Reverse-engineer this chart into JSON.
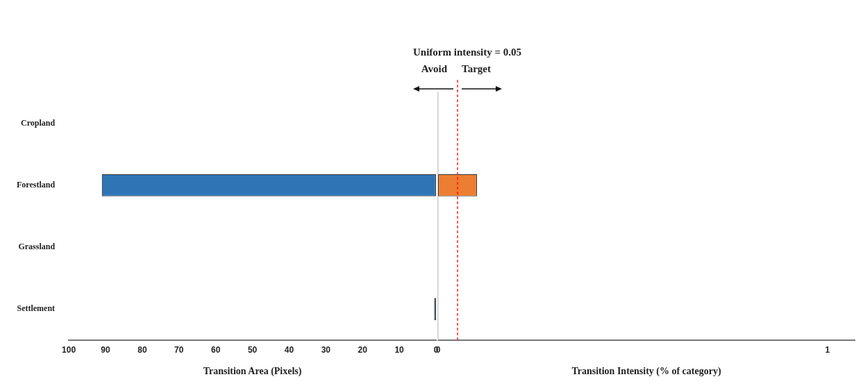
{
  "chart_data": [
    {
      "type": "bar",
      "orientation": "horizontal",
      "categories": [
        "Cropland",
        "Forestland",
        "Grassland",
        "Settlement"
      ],
      "series": [
        {
          "color": "#2e75b6",
          "values": [
            0,
            91,
            0,
            0.5
          ]
        }
      ],
      "xlim": [
        100,
        0
      ],
      "xticks": [
        100,
        90,
        80,
        70,
        60,
        50,
        40,
        30,
        20,
        10,
        0
      ],
      "xlabel": "Transition Area (Pixels)"
    },
    {
      "type": "bar",
      "orientation": "horizontal",
      "categories": [
        null,
        null,
        null,
        null
      ],
      "series": [
        {
          "color": "#ed7d31",
          "values": [
            0,
            0.1,
            0,
            0
          ]
        }
      ],
      "xlim": [
        0,
        1.07
      ],
      "xticks": [
        0,
        1
      ],
      "xlabel": "Transition Intensity (% of category)",
      "tick_labels": "x",
      "ref_lines": [
        {
          "axis": "x",
          "value": 0.05,
          "label": "Uniform intensity = 0.05",
          "color": "#ff0000",
          "line_style": "dashed"
        }
      ],
      "annotations": [
        "Avoid",
        "Target"
      ]
    }
  ]
}
